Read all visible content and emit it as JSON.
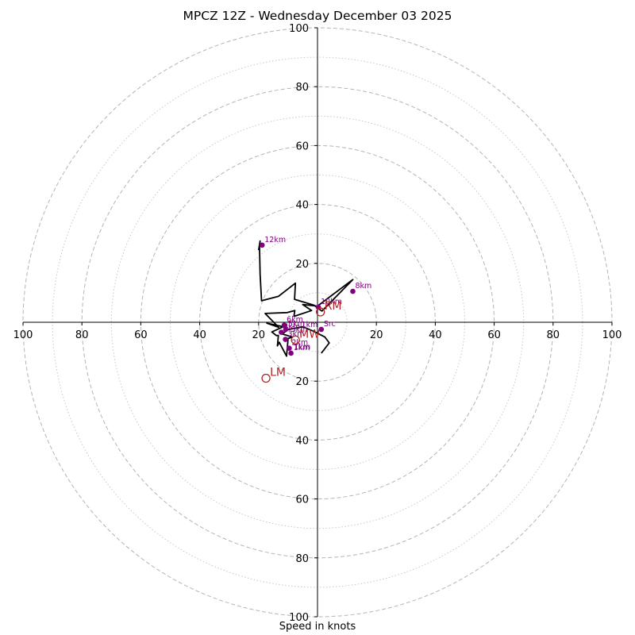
{
  "chart_data": {
    "type": "scatter",
    "subtype": "hodograph",
    "title": "MPCZ 12Z - Wednesday December 03 2025",
    "xlabel": "Speed in knots",
    "ylabel": "",
    "xlim": [
      -100,
      100
    ],
    "ylim": [
      -100,
      100
    ],
    "dashed_rings": [
      20,
      40,
      60,
      80,
      100
    ],
    "dotted_rings": [
      10,
      30,
      50,
      70,
      90
    ],
    "x_ticks": [
      {
        "value": -100,
        "label": "100"
      },
      {
        "value": -80,
        "label": "80"
      },
      {
        "value": -60,
        "label": "60"
      },
      {
        "value": -40,
        "label": "40"
      },
      {
        "value": -20,
        "label": "20"
      },
      {
        "value": 20,
        "label": "20"
      },
      {
        "value": 40,
        "label": "40"
      },
      {
        "value": 60,
        "label": "60"
      },
      {
        "value": 80,
        "label": "80"
      },
      {
        "value": 100,
        "label": "100"
      }
    ],
    "y_ticks": [
      {
        "value": 100,
        "label": "100"
      },
      {
        "value": 80,
        "label": "80"
      },
      {
        "value": 60,
        "label": "60"
      },
      {
        "value": 40,
        "label": "40"
      },
      {
        "value": 20,
        "label": "20"
      },
      {
        "value": -20,
        "label": "20"
      },
      {
        "value": -40,
        "label": "40"
      },
      {
        "value": -60,
        "label": "60"
      },
      {
        "value": -80,
        "label": "80"
      },
      {
        "value": -100,
        "label": "100"
      }
    ],
    "hodograph_trace": {
      "u": [
        1.3,
        4,
        2.5,
        -1.5,
        -5,
        -10,
        -12,
        -8.5,
        -10,
        -10.2,
        -10.5,
        -13,
        -13.6,
        -13.3,
        -14,
        -15.5,
        -11.6,
        -17.2,
        -13.2,
        -17.8,
        -10.3,
        -7.7,
        -8.0,
        -2.0,
        -5.0,
        0,
        12,
        1.5,
        -1.2,
        -7.8,
        -7.5,
        -13.3,
        -19,
        -19.5,
        -19.7,
        -19.5,
        -20
      ],
      "v": [
        -10.5,
        -7,
        -5,
        -3,
        -1.5,
        -2.5,
        -4,
        -5,
        -5.5,
        -8,
        -11.5,
        -6.8,
        -8,
        -4.5,
        -4.5,
        -3.3,
        -1.5,
        -0.3,
        -1.7,
        3.0,
        3.3,
        4.0,
        2.0,
        4.0,
        6.0,
        5.5,
        14.5,
        3.8,
        5.8,
        7.8,
        13.3,
        8.8,
        7.3,
        16.3,
        26.0,
        27.6,
        24.5
      ]
    },
    "height_markers": [
      {
        "label": "Src",
        "u": 1.3,
        "v": -2.4,
        "color": "#800080"
      },
      {
        "label": "1km",
        "u": -9,
        "v": -10.5,
        "color": "#800080"
      },
      {
        "label": "2km",
        "u": -9.6,
        "v": -8.8,
        "color": "#800080"
      },
      {
        "label": "3km",
        "u": -10.9,
        "v": -5.8,
        "color": "#800080"
      },
      {
        "label": "4km",
        "u": -12.3,
        "v": -3.4,
        "color": "#800080"
      },
      {
        "label": "5km",
        "u": -10.8,
        "v": -2.4,
        "color": "#800080"
      },
      {
        "label": "6km",
        "u": -11.3,
        "v": -1.0,
        "color": "#800080"
      },
      {
        "label": "8km",
        "u": 12,
        "v": 10.5,
        "color": "#800080"
      },
      {
        "label": "10km",
        "u": 0.3,
        "v": 5.1,
        "color": "#800080"
      },
      {
        "label": "12km",
        "u": -18.8,
        "v": 26.2,
        "color": "#800080"
      }
    ],
    "motion_markers": [
      {
        "label": "RM",
        "u": 1,
        "v": 3.5,
        "color": "#b22222"
      },
      {
        "label": "MW",
        "u": -7.5,
        "v": -6,
        "color": "#b22222"
      },
      {
        "label": "LM",
        "u": -17.5,
        "v": -19,
        "color": "#b22222"
      }
    ],
    "small_labels": [
      {
        "label": "1km",
        "u": -8,
        "v": -9.2
      },
      {
        "label": "1km",
        "u": -5.5,
        "v": -1.6
      },
      {
        "label": "Skm",
        "u": -9,
        "v": -3.2
      }
    ]
  }
}
